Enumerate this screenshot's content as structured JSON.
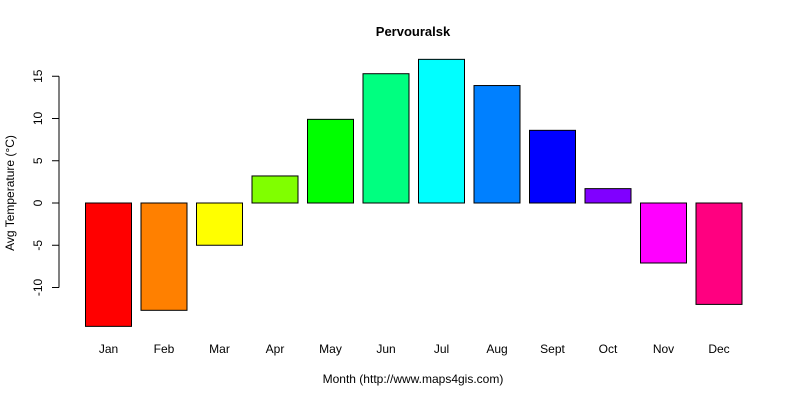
{
  "chart_data": {
    "type": "bar",
    "title": "Pervouralsk",
    "xlabel": "Month (http://www.maps4gis.com)",
    "ylabel": "Avg Temperature (°C)",
    "categories": [
      "Jan",
      "Feb",
      "Mar",
      "Apr",
      "May",
      "Jun",
      "Jul",
      "Aug",
      "Sept",
      "Oct",
      "Nov",
      "Dec"
    ],
    "values": [
      -14.6,
      -12.7,
      -5.0,
      3.2,
      9.9,
      15.3,
      17.0,
      13.9,
      8.6,
      1.7,
      -7.1,
      -12.0
    ],
    "colors": [
      "#FF0000",
      "#FF8000",
      "#FFFF00",
      "#80FF00",
      "#00FF00",
      "#00FF80",
      "#00FFFF",
      "#0080FF",
      "#0000FF",
      "#8000FF",
      "#FF00FF",
      "#FF0080"
    ],
    "yticks": [
      -10,
      -5,
      0,
      5,
      10,
      15
    ],
    "ylim": [
      -15,
      17
    ],
    "grid": false,
    "legend": null
  }
}
